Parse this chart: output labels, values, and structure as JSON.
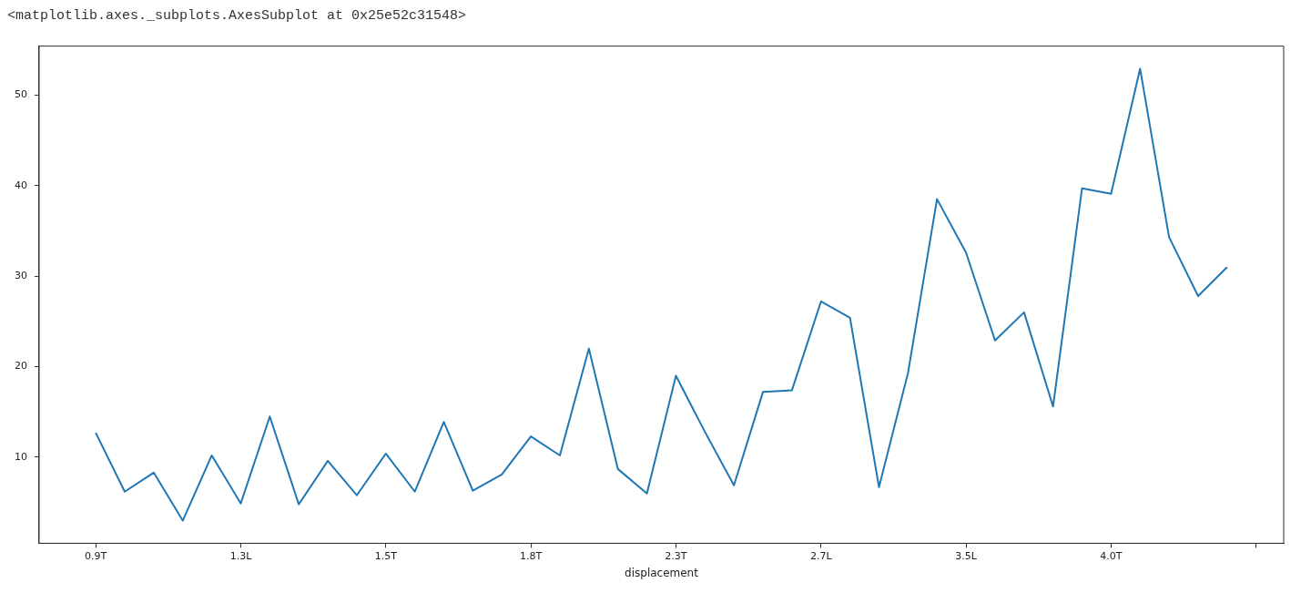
{
  "chart_data": {
    "type": "line",
    "xlabel": "displacement",
    "annotations": [
      "<matplotlib.axes._subplots.AxesSubplot at 0x25e52c31548>"
    ],
    "categories": [
      "0.9T",
      null,
      null,
      null,
      null,
      "1.3L",
      null,
      null,
      null,
      null,
      "1.5T",
      null,
      null,
      null,
      null,
      "1.8T",
      null,
      null,
      null,
      null,
      "2.3T",
      null,
      null,
      null,
      null,
      "2.7L",
      null,
      null,
      null,
      null,
      "3.5L",
      null,
      null,
      null,
      null,
      "4.0T",
      null,
      null,
      null,
      null
    ],
    "series": [
      {
        "color": "#1f77b4",
        "values": [
          12.7,
          6.2,
          8.3,
          3.0,
          10.2,
          4.9,
          14.5,
          4.8,
          9.6,
          5.8,
          10.4,
          6.2,
          13.9,
          6.3,
          8.1,
          12.3,
          10.2,
          22.0,
          8.7,
          6.0,
          19.0,
          12.8,
          6.9,
          17.2,
          17.4,
          27.2,
          25.4,
          6.7,
          19.3,
          38.5,
          32.6,
          22.9,
          26.0,
          15.6,
          39.7,
          39.1,
          52.9,
          34.3,
          27.8,
          31.0
        ]
      }
    ],
    "ylim": [
      0.5,
      55.4
    ],
    "yticks": [
      10,
      20,
      30,
      40,
      50
    ],
    "grid": false,
    "legend": false,
    "marker": "none",
    "line_style": "solid"
  }
}
